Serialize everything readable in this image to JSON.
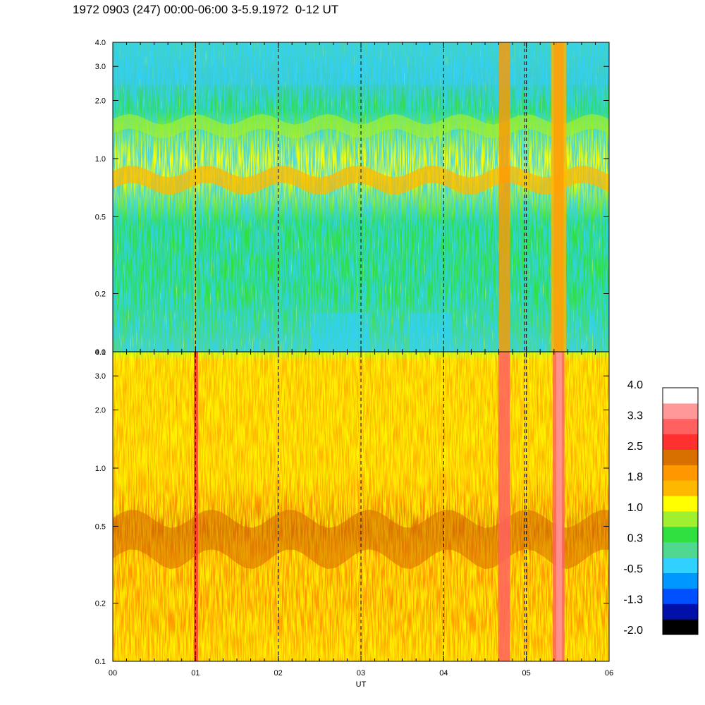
{
  "title": "1972 0903 (247) 00:00-06:00 3-5.9.1972  0-12 UT",
  "chart_data": [
    {
      "type": "heatmap",
      "panel": "top",
      "x_range": [
        "00",
        "06"
      ],
      "y_scale": "log",
      "ylim": [
        0.1,
        4.0
      ],
      "y_ticks": [
        "0.1",
        "0.2",
        "0.5",
        "1.0",
        "2.0",
        "3.0",
        "4.0"
      ],
      "x_ticks": [
        "00",
        "01",
        "02",
        "03",
        "04",
        "05",
        "06"
      ],
      "xlabel": "",
      "ylabel": "",
      "dashed_hour_lines": true,
      "grid": false
    },
    {
      "type": "heatmap",
      "panel": "bottom",
      "x_range": [
        "00",
        "06"
      ],
      "y_scale": "log",
      "ylim": [
        0.1,
        4.0
      ],
      "y_ticks": [
        "0.1",
        "0.2",
        "0.5",
        "1.0",
        "2.0",
        "3.0",
        "4.0"
      ],
      "x_ticks": [
        "00",
        "01",
        "02",
        "03",
        "04",
        "05",
        "06"
      ],
      "xlabel": "UT",
      "ylabel": "",
      "dashed_hour_lines": true,
      "grid": false
    }
  ],
  "colorbar": {
    "labels": [
      "4.0",
      "3.3",
      "2.5",
      "1.8",
      "1.0",
      "0.3",
      "-0.5",
      "-1.3",
      "-2.0"
    ],
    "colors": [
      "#000000",
      "#0010a8",
      "#0050ff",
      "#0098ff",
      "#30d0ff",
      "#50d890",
      "#30e040",
      "#a0f030",
      "#ffff00",
      "#ffb800",
      "#ff9800",
      "#d87000",
      "#ff3030",
      "#ff6060",
      "#ff9898",
      "#ffffff"
    ]
  },
  "palette_names": [
    "black",
    "navy",
    "blue",
    "azure",
    "cyan",
    "aquamarine",
    "green",
    "lime",
    "yellow",
    "amber",
    "orange",
    "dark-orange",
    "red",
    "salmon",
    "pink",
    "white"
  ]
}
